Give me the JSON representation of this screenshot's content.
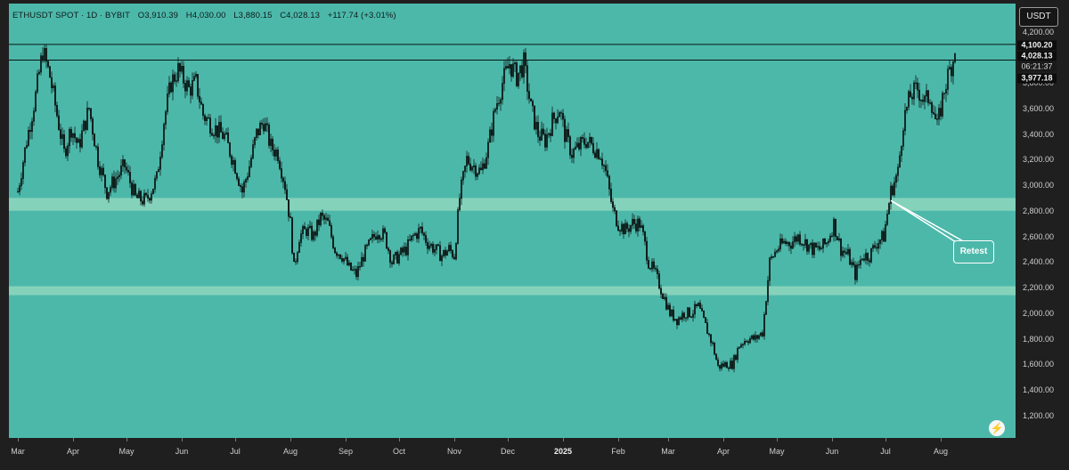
{
  "header": {
    "symbol": "ETHUSDT SPOT · 1D · BYBIT",
    "open": "O3,910.39",
    "high": "H4,030.00",
    "low": "L3,880.15",
    "close": "C4,028.13",
    "change": "+117.74 (+3.01%)"
  },
  "currency_button": "USDT",
  "price_tags": {
    "resistance": "4,100.20",
    "current_price": "4,028.13",
    "countdown": "06:21:37",
    "level": "3,977.18"
  },
  "annotation": {
    "retest_label": "Retest"
  },
  "colors": {
    "background": "#4cb8aa",
    "zone": "#8fd6be",
    "candles": "#0f1f1c",
    "lines": "#0a1412"
  },
  "icons": {
    "bolt": "lightning-icon"
  },
  "chart_data": {
    "type": "candlestick",
    "title": "",
    "xlabel": "",
    "ylabel": "",
    "y_axis_side": "right",
    "ylim": [
      1100,
      4300
    ],
    "y_ticks": [
      "4,200.00",
      "4,000.00",
      "3,800.00",
      "3,600.00",
      "3,400.00",
      "3,200.00",
      "3,000.00",
      "2,800.00",
      "2,600.00",
      "2,400.00",
      "2,200.00",
      "2,000.00",
      "1,800.00",
      "1,600.00",
      "1,400.00",
      "1,200.00"
    ],
    "y_tick_values": [
      4200,
      4000,
      3800,
      3600,
      3400,
      3200,
      3000,
      2800,
      2600,
      2400,
      2200,
      2000,
      1800,
      1600,
      1400,
      1200
    ],
    "x_ticks": [
      {
        "label": "Mar",
        "day": 0
      },
      {
        "label": "Apr",
        "day": 31
      },
      {
        "label": "May",
        "day": 61
      },
      {
        "label": "Jun",
        "day": 92
      },
      {
        "label": "Jul",
        "day": 122
      },
      {
        "label": "Aug",
        "day": 153
      },
      {
        "label": "Sep",
        "day": 184
      },
      {
        "label": "Oct",
        "day": 214
      },
      {
        "label": "Nov",
        "day": 245
      },
      {
        "label": "Dec",
        "day": 275
      },
      {
        "label": "2025",
        "day": 306,
        "bold": true
      },
      {
        "label": "Feb",
        "day": 337
      },
      {
        "label": "Mar",
        "day": 365
      },
      {
        "label": "Apr",
        "day": 396
      },
      {
        "label": "May",
        "day": 426
      },
      {
        "label": "Jun",
        "day": 457
      },
      {
        "label": "Jul",
        "day": 487
      },
      {
        "label": "Aug",
        "day": 518
      }
    ],
    "horizontal_lines": [
      4100.2,
      3977.18
    ],
    "zones": [
      [
        2800,
        2900
      ],
      [
        2140,
        2210
      ]
    ],
    "price_path": [
      [
        0,
        2950
      ],
      [
        5,
        3350
      ],
      [
        10,
        3700
      ],
      [
        14,
        4050
      ],
      [
        18,
        3850
      ],
      [
        22,
        3550
      ],
      [
        26,
        3250
      ],
      [
        30,
        3450
      ],
      [
        34,
        3300
      ],
      [
        40,
        3600
      ],
      [
        45,
        3200
      ],
      [
        50,
        2950
      ],
      [
        55,
        3050
      ],
      [
        60,
        3150
      ],
      [
        66,
        2900
      ],
      [
        72,
        2880
      ],
      [
        78,
        3050
      ],
      [
        82,
        3500
      ],
      [
        86,
        3800
      ],
      [
        90,
        3900
      ],
      [
        96,
        3750
      ],
      [
        100,
        3800
      ],
      [
        104,
        3550
      ],
      [
        110,
        3450
      ],
      [
        116,
        3380
      ],
      [
        122,
        3150
      ],
      [
        126,
        2950
      ],
      [
        130,
        3150
      ],
      [
        134,
        3400
      ],
      [
        138,
        3500
      ],
      [
        142,
        3300
      ],
      [
        146,
        3250
      ],
      [
        150,
        3000
      ],
      [
        153,
        2700
      ],
      [
        155,
        2350
      ],
      [
        158,
        2600
      ],
      [
        162,
        2650
      ],
      [
        166,
        2600
      ],
      [
        170,
        2750
      ],
      [
        174,
        2700
      ],
      [
        178,
        2500
      ],
      [
        182,
        2450
      ],
      [
        186,
        2350
      ],
      [
        190,
        2300
      ],
      [
        194,
        2450
      ],
      [
        198,
        2550
      ],
      [
        202,
        2650
      ],
      [
        206,
        2600
      ],
      [
        210,
        2400
      ],
      [
        214,
        2450
      ],
      [
        218,
        2500
      ],
      [
        222,
        2600
      ],
      [
        226,
        2650
      ],
      [
        230,
        2550
      ],
      [
        234,
        2500
      ],
      [
        238,
        2450
      ],
      [
        242,
        2500
      ],
      [
        245,
        2450
      ],
      [
        248,
        2900
      ],
      [
        252,
        3200
      ],
      [
        256,
        3150
      ],
      [
        260,
        3100
      ],
      [
        264,
        3300
      ],
      [
        268,
        3600
      ],
      [
        272,
        3800
      ],
      [
        276,
        3950
      ],
      [
        280,
        3850
      ],
      [
        284,
        3950
      ],
      [
        288,
        3600
      ],
      [
        292,
        3400
      ],
      [
        296,
        3350
      ],
      [
        300,
        3500
      ],
      [
        304,
        3600
      ],
      [
        307,
        3400
      ],
      [
        311,
        3250
      ],
      [
        315,
        3300
      ],
      [
        319,
        3350
      ],
      [
        323,
        3300
      ],
      [
        327,
        3250
      ],
      [
        330,
        3100
      ],
      [
        334,
        2800
      ],
      [
        337,
        2700
      ],
      [
        341,
        2650
      ],
      [
        345,
        2700
      ],
      [
        349,
        2700
      ],
      [
        351,
        2600
      ],
      [
        354,
        2400
      ],
      [
        358,
        2300
      ],
      [
        362,
        2150
      ],
      [
        366,
        2000
      ],
      [
        370,
        1950
      ],
      [
        374,
        2000
      ],
      [
        378,
        2000
      ],
      [
        382,
        2050
      ],
      [
        386,
        1900
      ],
      [
        390,
        1750
      ],
      [
        393,
        1580
      ],
      [
        397,
        1600
      ],
      [
        401,
        1600
      ],
      [
        405,
        1750
      ],
      [
        409,
        1800
      ],
      [
        414,
        1800
      ],
      [
        418,
        1850
      ],
      [
        422,
        2400
      ],
      [
        426,
        2500
      ],
      [
        430,
        2550
      ],
      [
        434,
        2550
      ],
      [
        438,
        2600
      ],
      [
        442,
        2550
      ],
      [
        446,
        2500
      ],
      [
        450,
        2500
      ],
      [
        454,
        2550
      ],
      [
        458,
        2700
      ],
      [
        462,
        2500
      ],
      [
        466,
        2450
      ],
      [
        470,
        2300
      ],
      [
        474,
        2450
      ],
      [
        478,
        2450
      ],
      [
        482,
        2550
      ],
      [
        486,
        2600
      ],
      [
        490,
        2950
      ],
      [
        494,
        3100
      ],
      [
        497,
        3500
      ],
      [
        501,
        3700
      ],
      [
        505,
        3750
      ],
      [
        509,
        3650
      ],
      [
        512,
        3700
      ],
      [
        516,
        3450
      ],
      [
        520,
        3750
      ],
      [
        523,
        3900
      ],
      [
        526,
        4028
      ]
    ]
  }
}
